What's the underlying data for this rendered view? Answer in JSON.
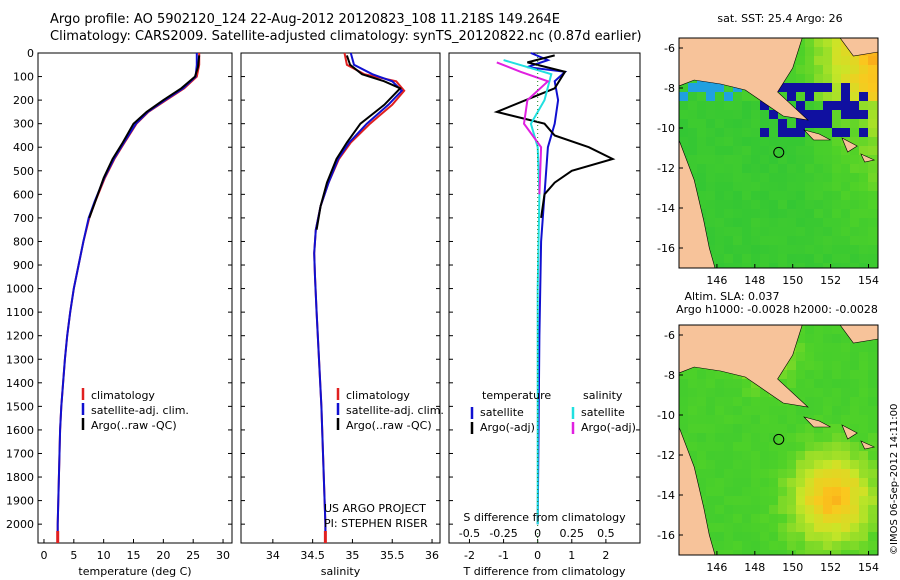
{
  "header": {
    "title_line1": "Argo profile: AO 5902120_124 22-Aug-2012 20120823_108 11.218S 149.264E",
    "title_line2": "Climatology: CARS2009. Satellite-adjusted climatology: synTS_20120822.nc (0.87d earlier)"
  },
  "colors": {
    "climatology": "#e02020",
    "satellite": "#1010d0",
    "argo": "#000000",
    "sal_satellite": "#20e0e0",
    "sal_argo": "#e020e0",
    "land": "#f7c39a"
  },
  "chart_data": [
    {
      "type": "line",
      "name": "temperature-profile",
      "xlabel": "temperature (deg C)",
      "ylabel": "",
      "xlim": [
        -1,
        31.5
      ],
      "ylim": [
        0,
        2080
      ],
      "y_inverted": true,
      "xticks": [
        0,
        5,
        10,
        15,
        20,
        25,
        30
      ],
      "yticks": [
        0,
        100,
        200,
        300,
        400,
        500,
        600,
        700,
        800,
        900,
        1000,
        1100,
        1200,
        1300,
        1400,
        1500,
        1600,
        1700,
        1800,
        1900,
        2000
      ],
      "legend": [
        "climatology",
        "satellite-adj. clim.",
        "Argo(..raw -QC)"
      ],
      "series": [
        {
          "name": "climatology",
          "color_key": "climatology",
          "points": [
            [
              26.0,
              0
            ],
            [
              26.0,
              50
            ],
            [
              25.6,
              100
            ],
            [
              23.5,
              150
            ],
            [
              20.5,
              200
            ],
            [
              17.5,
              250
            ],
            [
              15.5,
              300
            ],
            [
              13.5,
              380
            ],
            [
              11.8,
              450
            ],
            [
              10.2,
              530
            ],
            [
              8.6,
              630
            ],
            [
              7.6,
              700
            ],
            [
              6.6,
              800
            ],
            [
              5.8,
              900
            ],
            [
              5.0,
              1000
            ],
            [
              4.4,
              1100
            ],
            [
              3.9,
              1200
            ],
            [
              3.5,
              1300
            ],
            [
              3.2,
              1400
            ],
            [
              2.9,
              1500
            ],
            [
              2.7,
              1600
            ],
            [
              2.6,
              1700
            ],
            [
              2.5,
              1800
            ],
            [
              2.4,
              1900
            ],
            [
              2.3,
              2000
            ],
            [
              2.3,
              2060
            ]
          ]
        },
        {
          "name": "satellite-adj. clim.",
          "color_key": "satellite",
          "points": [
            [
              25.6,
              0
            ],
            [
              25.6,
              50
            ],
            [
              25.4,
              100
            ],
            [
              23.3,
              150
            ],
            [
              20.3,
              200
            ],
            [
              17.4,
              250
            ],
            [
              15.4,
              300
            ],
            [
              13.4,
              380
            ],
            [
              11.7,
              450
            ],
            [
              10.1,
              530
            ],
            [
              8.5,
              630
            ],
            [
              7.5,
              700
            ],
            [
              6.6,
              800
            ],
            [
              5.8,
              900
            ],
            [
              5.0,
              1000
            ],
            [
              4.4,
              1100
            ],
            [
              3.9,
              1200
            ],
            [
              3.5,
              1300
            ],
            [
              3.2,
              1400
            ],
            [
              2.9,
              1500
            ],
            [
              2.7,
              1600
            ],
            [
              2.6,
              1700
            ],
            [
              2.5,
              1800
            ],
            [
              2.4,
              1900
            ],
            [
              2.3,
              2000
            ],
            [
              2.3,
              2060
            ]
          ]
        },
        {
          "name": "Argo(..raw -QC)",
          "color_key": "argo",
          "points": [
            [
              26.0,
              10
            ],
            [
              25.8,
              60
            ],
            [
              25.3,
              100
            ],
            [
              23.0,
              150
            ],
            [
              20.0,
              200
            ],
            [
              17.2,
              250
            ],
            [
              15.0,
              300
            ],
            [
              13.2,
              380
            ],
            [
              11.5,
              450
            ],
            [
              10.0,
              530
            ],
            [
              8.6,
              630
            ],
            [
              7.6,
              700
            ]
          ]
        }
      ]
    },
    {
      "type": "line",
      "name": "salinity-profile",
      "xlabel": "salinity",
      "ylabel": "",
      "xlim": [
        33.6,
        36.1
      ],
      "ylim": [
        0,
        2080
      ],
      "y_inverted": true,
      "xticks": [
        34,
        34.5,
        35,
        35.5,
        36
      ],
      "legend": [
        "climatology",
        "satellite-adj. clim.",
        "Argo(..raw -QC)"
      ],
      "annotation_lines": [
        "US ARGO PROJECT",
        "PI: STEPHEN RISER"
      ],
      "series": [
        {
          "name": "climatology",
          "color_key": "climatology",
          "points": [
            [
              34.9,
              0
            ],
            [
              34.93,
              50
            ],
            [
              35.15,
              90
            ],
            [
              35.55,
              120
            ],
            [
              35.65,
              160
            ],
            [
              35.5,
              220
            ],
            [
              35.22,
              300
            ],
            [
              34.98,
              380
            ],
            [
              34.83,
              450
            ],
            [
              34.7,
              550
            ],
            [
              34.6,
              650
            ],
            [
              34.54,
              750
            ],
            [
              34.52,
              850
            ],
            [
              34.53,
              950
            ],
            [
              34.55,
              1100
            ],
            [
              34.58,
              1300
            ],
            [
              34.61,
              1500
            ],
            [
              34.63,
              1700
            ],
            [
              34.65,
              1900
            ],
            [
              34.66,
              2000
            ],
            [
              34.66,
              2060
            ]
          ]
        },
        {
          "name": "satellite-adj. clim.",
          "color_key": "satellite",
          "points": [
            [
              34.98,
              0
            ],
            [
              35.02,
              50
            ],
            [
              35.25,
              90
            ],
            [
              35.5,
              120
            ],
            [
              35.62,
              160
            ],
            [
              35.45,
              220
            ],
            [
              35.18,
              300
            ],
            [
              34.96,
              380
            ],
            [
              34.82,
              450
            ],
            [
              34.7,
              550
            ],
            [
              34.6,
              650
            ],
            [
              34.54,
              750
            ],
            [
              34.52,
              850
            ],
            [
              34.53,
              950
            ],
            [
              34.55,
              1100
            ],
            [
              34.58,
              1300
            ],
            [
              34.61,
              1500
            ],
            [
              34.63,
              1700
            ],
            [
              34.65,
              1900
            ],
            [
              34.66,
              2000
            ],
            [
              34.66,
              2060
            ]
          ]
        },
        {
          "name": "Argo(..raw -QC)",
          "color_key": "argo",
          "points": [
            [
              34.93,
              10
            ],
            [
              34.97,
              50
            ],
            [
              35.12,
              90
            ],
            [
              35.4,
              120
            ],
            [
              35.6,
              150
            ],
            [
              35.4,
              220
            ],
            [
              35.1,
              300
            ],
            [
              34.93,
              380
            ],
            [
              34.8,
              450
            ],
            [
              34.68,
              550
            ],
            [
              34.6,
              650
            ],
            [
              34.55,
              750
            ]
          ]
        }
      ]
    },
    {
      "type": "line",
      "name": "difference-profile",
      "xlabel": "T difference from climatology",
      "top_axis_label": "S difference from climatology",
      "xlim": [
        -2.6,
        3.0
      ],
      "ylim": [
        0,
        2080
      ],
      "y_inverted": true,
      "xticks": [
        -2,
        -1,
        0,
        1,
        2
      ],
      "top_ticks": [
        [
          "-0.5",
          -2.0
        ],
        [
          "-0.25",
          -1.0
        ],
        [
          "0",
          0
        ],
        [
          "0.25",
          1.0
        ],
        [
          "0.5",
          2.0
        ]
      ],
      "legend_temperature_title": "temperature",
      "legend_temperature": [
        "satellite",
        "Argo(-adj)"
      ],
      "legend_salinity_title": "salinity",
      "legend_salinity": [
        "satellite",
        "Argo(-adj)"
      ],
      "series": [
        {
          "name": "T satellite",
          "color_key": "satellite",
          "points": [
            [
              -0.2,
              0
            ],
            [
              0.3,
              30
            ],
            [
              -0.3,
              60
            ],
            [
              0.8,
              80
            ],
            [
              0.5,
              120
            ],
            [
              0.6,
              200
            ],
            [
              0.5,
              300
            ],
            [
              0.3,
              400
            ],
            [
              0.2,
              600
            ],
            [
              0.1,
              800
            ],
            [
              0.05,
              1200
            ],
            [
              0.0,
              2000
            ]
          ]
        },
        {
          "name": "T Argo(-adj)",
          "color_key": "argo",
          "points": [
            [
              0.5,
              10
            ],
            [
              -0.3,
              40
            ],
            [
              0.8,
              80
            ],
            [
              0.5,
              150
            ],
            [
              -1.2,
              250
            ],
            [
              0.2,
              300
            ],
            [
              0.5,
              350
            ],
            [
              1.5,
              400
            ],
            [
              2.2,
              450
            ],
            [
              1.0,
              500
            ],
            [
              0.5,
              550
            ],
            [
              0.2,
              600
            ],
            [
              0.1,
              700
            ]
          ]
        },
        {
          "name": "S satellite",
          "color_key": "sal_satellite",
          "points": [
            [
              -1.0,
              30
            ],
            [
              -0.3,
              60
            ],
            [
              0.4,
              90
            ],
            [
              0.2,
              200
            ],
            [
              -0.2,
              300
            ],
            [
              0.0,
              400
            ],
            [
              0.05,
              600
            ],
            [
              0.0,
              1000
            ],
            [
              0.0,
              2000
            ]
          ]
        },
        {
          "name": "S Argo(-adj)",
          "color_key": "sal_argo",
          "points": [
            [
              -1.2,
              40
            ],
            [
              -0.5,
              80
            ],
            [
              0.3,
              120
            ],
            [
              -0.3,
              200
            ],
            [
              -0.4,
              300
            ],
            [
              0.1,
              400
            ],
            [
              0.05,
              600
            ]
          ]
        }
      ]
    },
    {
      "type": "heatmap",
      "name": "sst-map",
      "title": "sat. SST: 25.4 Argo: 26",
      "xlim": [
        144,
        154.5
      ],
      "ylim": [
        -17,
        -5.5
      ],
      "xticks": [
        146,
        148,
        150,
        152,
        154
      ],
      "yticks": [
        -6,
        -8,
        -10,
        -12,
        -14,
        -16
      ],
      "float_location": [
        149.264,
        -11.218
      ]
    },
    {
      "type": "heatmap",
      "name": "sla-map",
      "title_line1": "Altim. SLA: 0.037",
      "title_line2": "Argo h1000: -0.0028 h2000: -0.0028",
      "xlim": [
        144,
        154.5
      ],
      "ylim": [
        -17,
        -5.5
      ],
      "xticks": [
        146,
        148,
        150,
        152,
        154
      ],
      "yticks": [
        -6,
        -8,
        -10,
        -12,
        -14,
        -16
      ],
      "float_location": [
        149.264,
        -11.218
      ]
    }
  ],
  "footer": {
    "credit": "©IMOS 06-Sep-2012 14:11:00"
  }
}
